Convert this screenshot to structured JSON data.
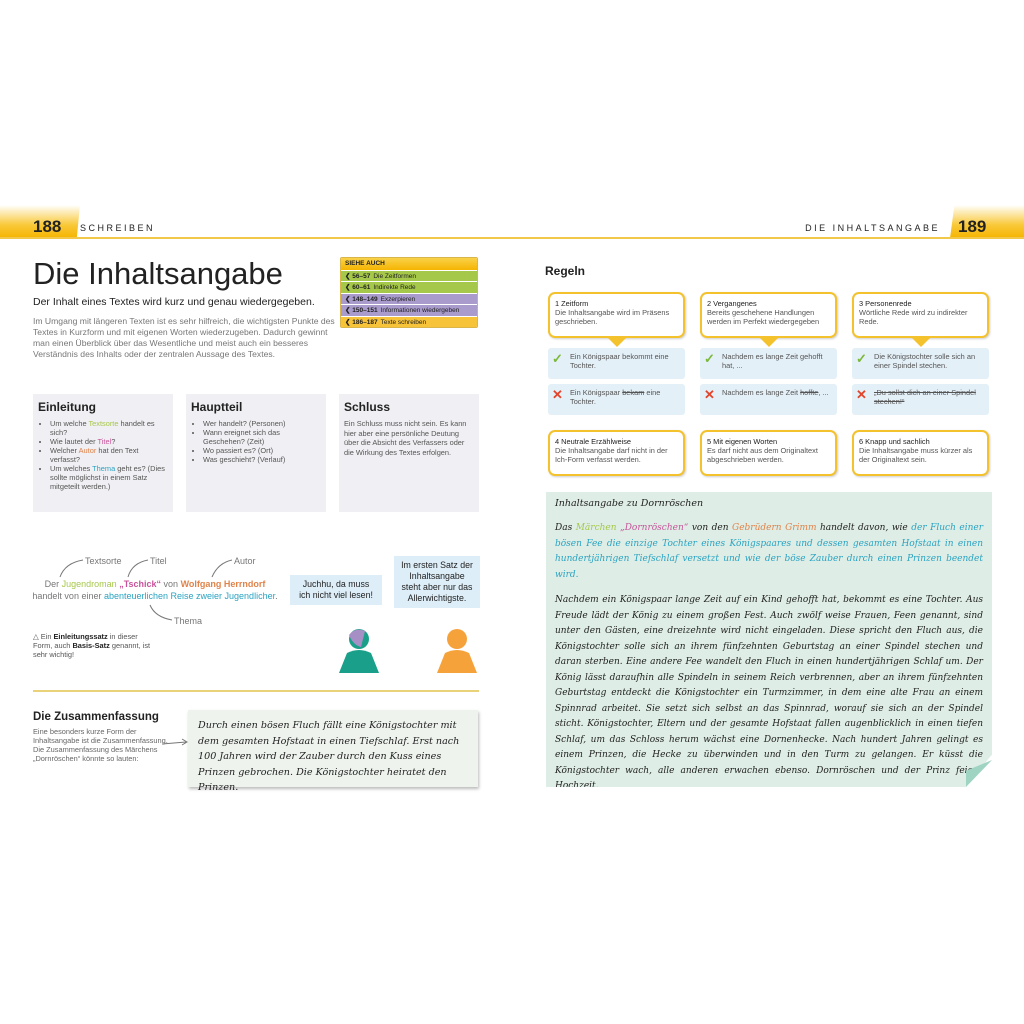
{
  "header": {
    "left_page": "188",
    "left_section": "SCHREIBEN",
    "right_page": "189",
    "right_section": "DIE INHALTSANGABE",
    "accent": "#f5b400"
  },
  "title": "Die Inhaltsangabe",
  "subtitle": "Der Inhalt eines Textes wird kurz und genau wiedergegeben.",
  "intro": "Im Umgang mit längeren Texten ist es sehr hilfreich, die wichtigsten Punkte des Textes in Kurzform und mit eigenen Worten wiederzugeben. Dadurch gewinnt man einen Überblick über das Wesentliche und meist auch ein besseres Verständnis des Inhalts oder der zentralen Aussage des Textes.",
  "siehe_auch": {
    "title": "SIEHE AUCH",
    "items": [
      {
        "pages": "56–57",
        "label": "Die Zeitformen",
        "color": "#a6c84a"
      },
      {
        "pages": "60–61",
        "label": "Indirekte Rede",
        "color": "#a6c84a"
      },
      {
        "pages": "148–149",
        "label": "Exzerpieren",
        "color": "#a99bcb"
      },
      {
        "pages": "150–151",
        "label": "Informationen  wiedergeben",
        "color": "#a99bcb"
      },
      {
        "pages": "186–187",
        "label": "Texte schreiben",
        "color": "#f7c338"
      }
    ]
  },
  "sections": {
    "einleitung": {
      "title": "Einleitung",
      "items": [
        "Um welche Textsorte handelt es sich?",
        "Wie lautet der Titel?",
        "Welcher Autor hat den Text verfasst?",
        "Um welches Thema geht es? (Dies sollte möglichst in einem Satz mitgeteilt werden.)"
      ]
    },
    "hauptteil": {
      "title": "Hauptteil",
      "items": [
        "Wer handelt? (Personen)",
        "Wann ereignet sich das Geschehen? (Zeit)",
        "Wo passiert es? (Ort)",
        "Was geschieht? (Verlauf)"
      ]
    },
    "schluss": {
      "title": "Schluss",
      "text": "Ein Schluss muss nicht sein. Es kann hier aber eine persönliche Deutung über die Absicht des Verfassers oder die Wirkung des Textes erfolgen."
    }
  },
  "diagram": {
    "labels": {
      "textsorte": "Textsorte",
      "titel": "Titel",
      "autor": "Autor",
      "thema": "Thema"
    },
    "s1": "Der ",
    "textsorte": "Jugendroman",
    "s2": " ",
    "titel": "„Tschick“",
    "s3": " von ",
    "autor": "Wolfgang Herrndorf",
    "s4": " handelt von einer ",
    "thema": "abenteuerlichen Reise zweier Jugendlicher",
    "s5": ".",
    "note_pre": "Ein ",
    "note_b1": "Einleitungssatz",
    "note_mid": " in dieser Form, auch ",
    "note_b2": "Basis-Satz",
    "note_post": " genannt, ist sehr wichtig!",
    "bubble1": "Juchhu, da muss ich nicht viel lesen!",
    "bubble2": "Im ersten Satz der Inhaltsangabe steht aber nur das Allerwichtigste."
  },
  "zusammenfassung": {
    "title": "Die Zusammenfassung",
    "text": "Eine besonders kurze Form der Inhaltsangabe ist die Zusammenfassung. Die Zusammenfassung des Märchens „Dornröschen“ könnte so lauten:",
    "example": "Durch einen bösen Fluch fällt eine Königstochter mit dem gesamten Hofstaat in einen Tiefschlaf. Erst nach 100 Jahren wird der Zauber durch den Kuss eines Prinzen gebrochen. Die Königstochter heiratet den Prinzen."
  },
  "regeln": {
    "title": "Regeln",
    "rules": [
      {
        "title": "1 Zeitform",
        "text": "Die Inhaltsangabe wird im Präsens geschrieben.",
        "good": "Ein Königspaar bekommt eine Tochter.",
        "bad_pre": "Ein Königspaar ",
        "bad_strike": "bekam",
        "bad_post": " eine Tochter."
      },
      {
        "title": "2 Vergangenes",
        "text": "Bereits geschehene Handlungen werden im Perfekt wiedergegeben",
        "good": "Nachdem es lange Zeit gehofft hat, ...",
        "bad_pre": "Nachdem es lange Zeit ",
        "bad_strike": "hoffte",
        "bad_post": ", ..."
      },
      {
        "title": "3 Personenrede",
        "text": "Wörtliche Rede wird zu indirekter Rede.",
        "good": "Die Königstochter solle sich an einer Spindel stechen.",
        "bad_pre": "",
        "bad_strike": "„Du sollst dich an einer Spindel stechen!“",
        "bad_post": ""
      },
      {
        "title": "4 Neutrale Erzählweise",
        "text": "Die Inhaltsangabe darf nicht in der Ich-Form verfasst werden."
      },
      {
        "title": "5 Mit eigenen Worten",
        "text": "Es darf nicht aus dem Originaltext abgeschrieben werden."
      },
      {
        "title": "6 Knapp und sachlich",
        "text": "Die Inhaltsangabe muss kürzer als der Originaltext sein."
      }
    ]
  },
  "beispiel": {
    "title": "Inhaltsangabe zu Dornröschen",
    "p1": {
      "a": "Das ",
      "textsorte": "Märchen",
      "b": " ",
      "titel": "„Dornröschen“",
      "c": " von den ",
      "autor": "Gebrüdern Grimm",
      "d": " handelt davon, wie ",
      "thema": "der Fluch einer bösen Fee die einzige Tochter eines Königspaares und dessen gesamten Hofstaat in einen hundertjährigen Tiefschlaf versetzt und wie der böse Zauber durch einen Prinzen beendet wird."
    },
    "p2": "Nachdem ein Königspaar lange Zeit auf ein Kind gehofft hat, bekommt es eine Tochter. Aus Freude lädt der König zu einem großen Fest. Auch zwölf weise Frauen, Feen genannt, sind unter den Gästen, eine dreizehnte wird nicht eingeladen. Diese spricht den Fluch aus, die Königstochter solle sich an ihrem fünfzehnten Geburtstag an einer Spindel stechen und daran sterben. Eine andere Fee wandelt den Fluch in einen hundertjährigen Schlaf um. Der König lässt daraufhin alle Spindeln in seinem Reich verbrennen, aber an ihrem fünfzehnten Geburtstag entdeckt die Königstochter ein Turmzimmer, in dem eine alte Frau an einem Spinnrad arbeitet. Sie setzt sich selbst an das Spinnrad, worauf sie sich an der Spindel sticht. Königstochter, Eltern und der gesamte Hofstaat fallen augenblicklich in einen tiefen Schlaf, um das Schloss herum wächst eine Dornenhecke. Nach hundert Jahren gelingt es einem Prinzen, die Hecke zu überwinden und in den Turm zu gelangen. Er küsst die Königstochter wach, alle anderen erwachen ebenso. Dornröschen und der Prinz feiern Hochzeit."
  },
  "colors": {
    "textsorte": "#a6c84a",
    "titel": "#c7549b",
    "autor": "#e0834a",
    "thema": "#2aa3c2",
    "good": "#7cb83a",
    "bad": "#e2452b"
  }
}
